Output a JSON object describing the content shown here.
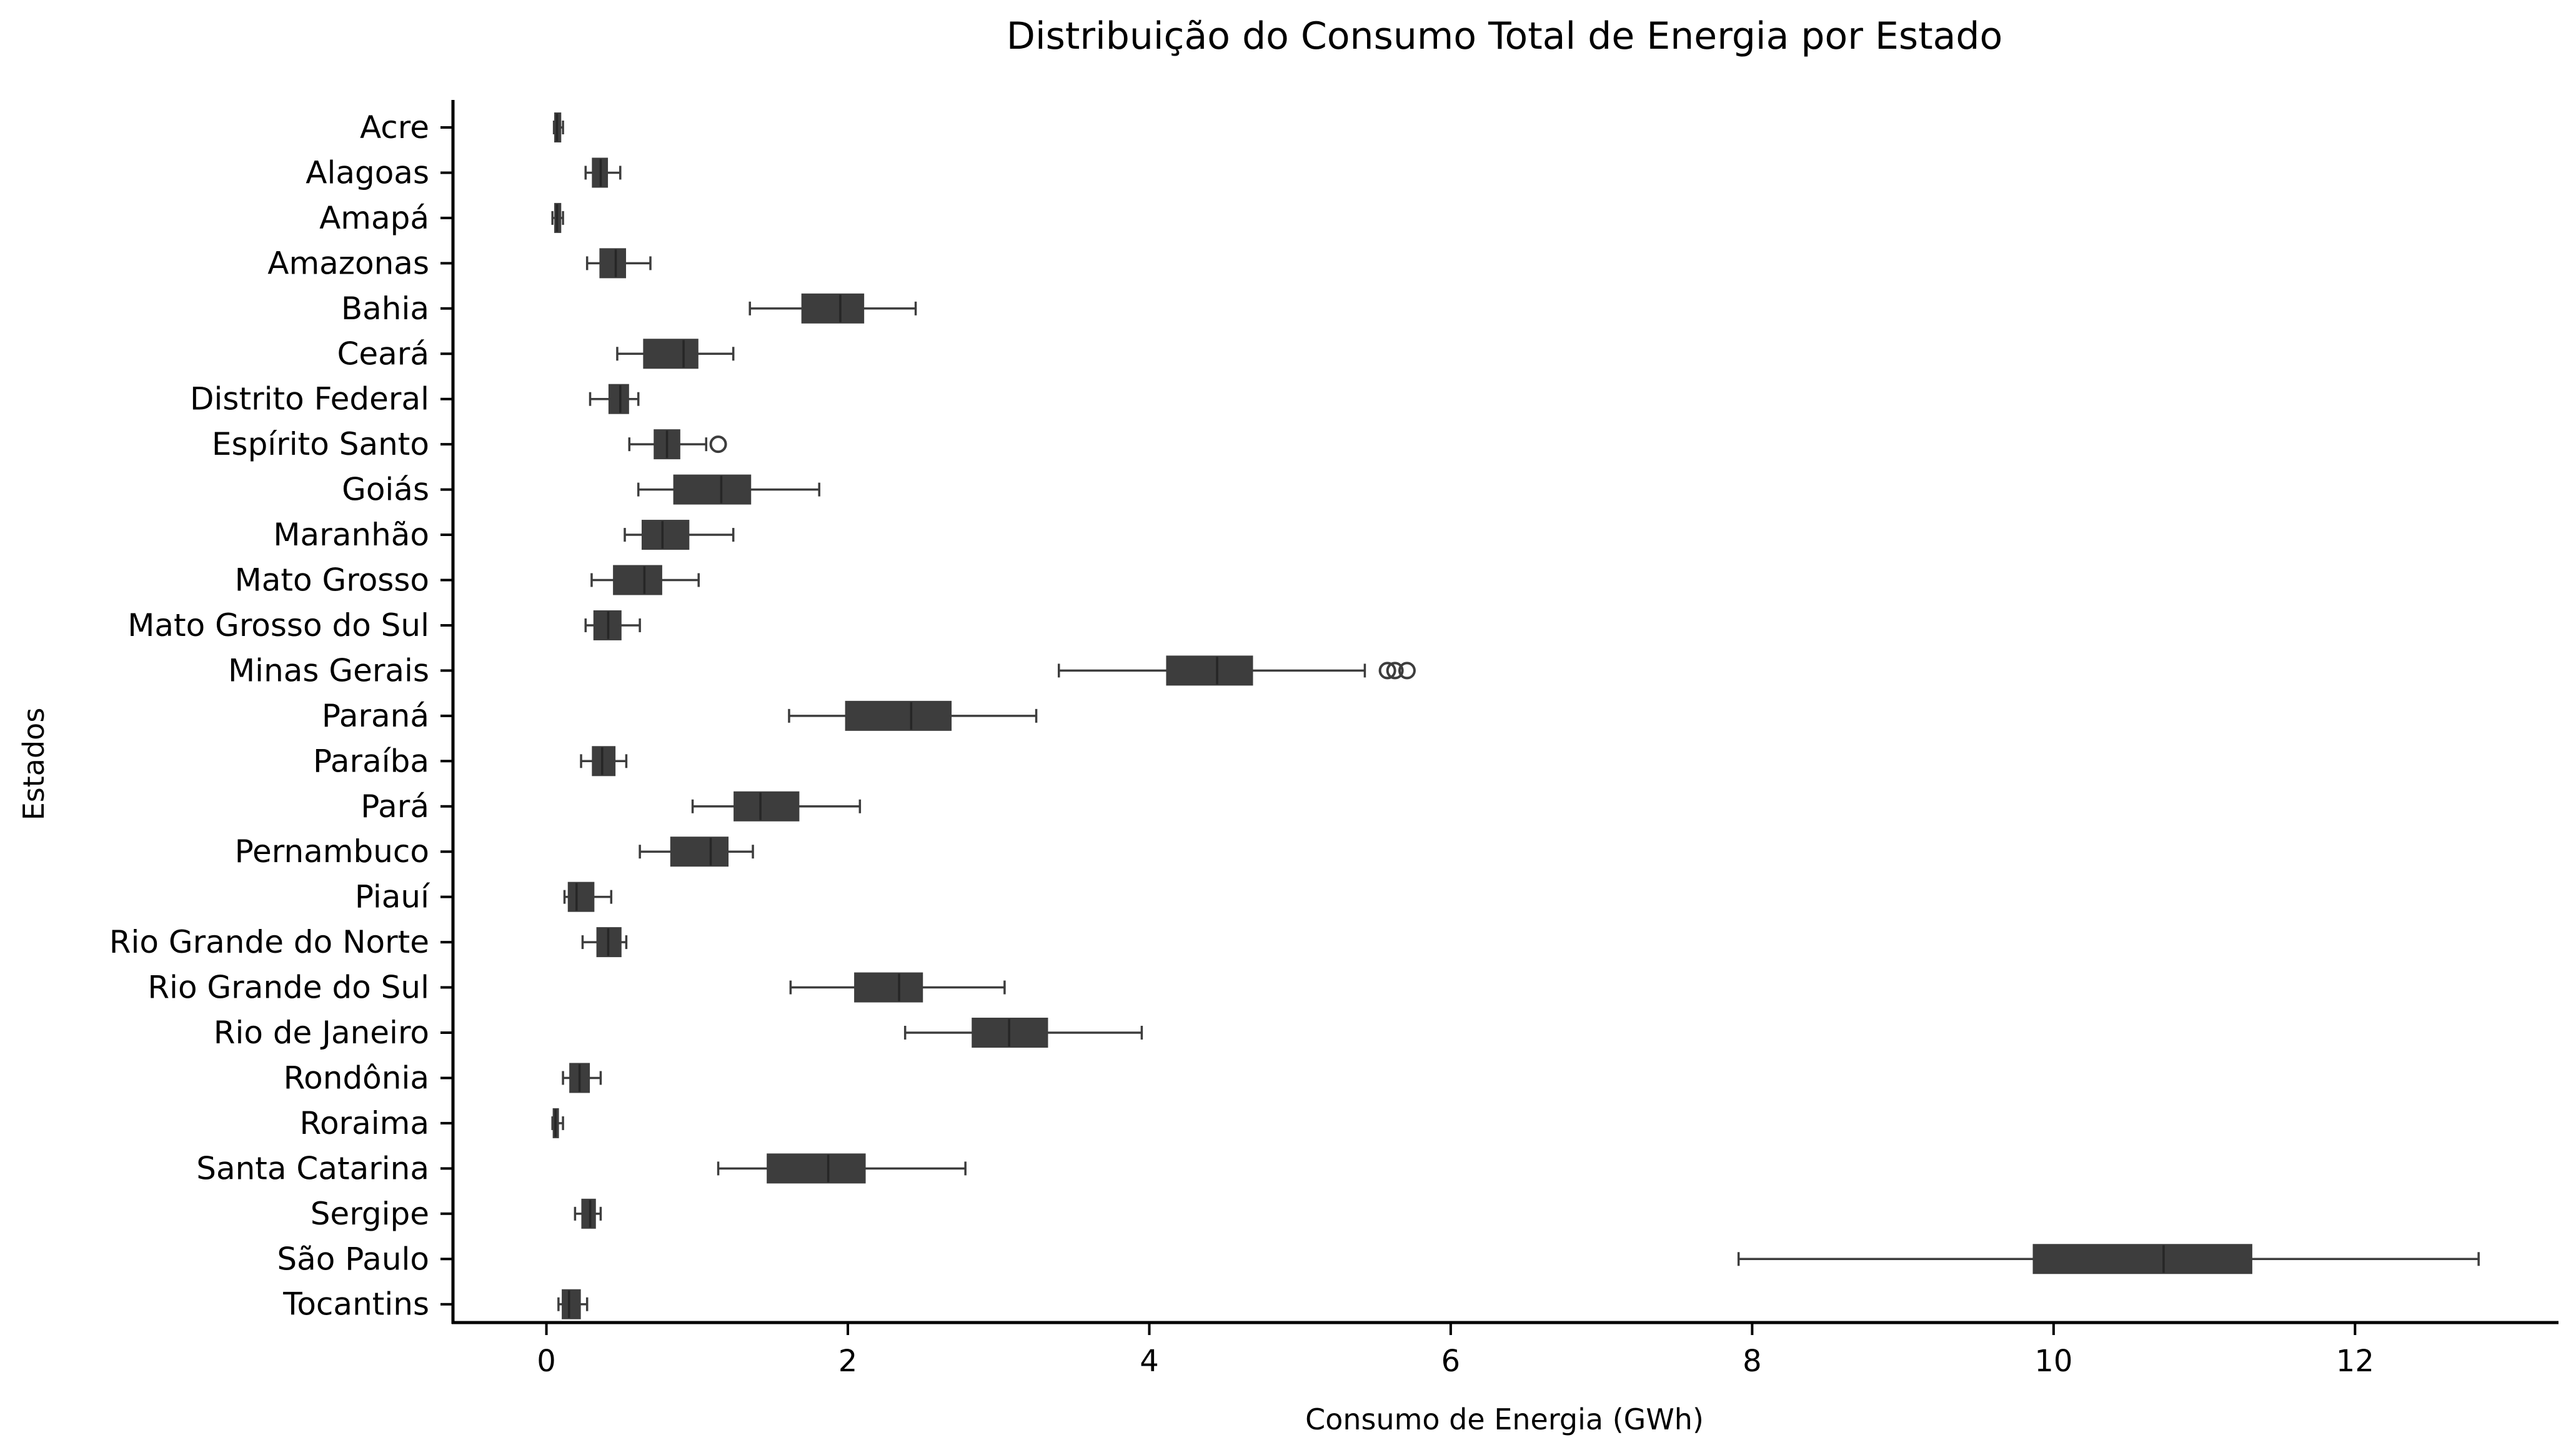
{
  "chart_data": {
    "type": "boxplot",
    "title": "Distribuição do Consumo Total de Energia por Estado",
    "xlabel": "Consumo de Energia (GWh)",
    "ylabel": "Estados",
    "xlim": [
      -0.62,
      13.35
    ],
    "xticks": [
      0,
      2,
      4,
      6,
      8,
      10,
      12
    ],
    "grid": false,
    "colors": {
      "box": "#3d3d3d",
      "median": "#262626",
      "axis": "#000000"
    },
    "categories": [
      "Acre",
      "Alagoas",
      "Amapá",
      "Amazonas",
      "Bahia",
      "Ceará",
      "Distrito Federal",
      "Espírito Santo",
      "Goiás",
      "Maranhão",
      "Mato Grosso",
      "Mato Grosso do Sul",
      "Minas Gerais",
      "Paraná",
      "Paraíba",
      "Pará",
      "Pernambuco",
      "Piauí",
      "Rio Grande do Norte",
      "Rio Grande do Sul",
      "Rio de Janeiro",
      "Rondônia",
      "Roraima",
      "Santa Catarina",
      "Sergipe",
      "São Paulo",
      "Tocantins"
    ],
    "boxes": [
      {
        "min": 0.05,
        "q1": 0.06,
        "median": 0.07,
        "q3": 0.09,
        "max": 0.11,
        "outliers": []
      },
      {
        "min": 0.26,
        "q1": 0.31,
        "median": 0.36,
        "q3": 0.4,
        "max": 0.49,
        "outliers": []
      },
      {
        "min": 0.04,
        "q1": 0.06,
        "median": 0.07,
        "q3": 0.09,
        "max": 0.11,
        "outliers": []
      },
      {
        "min": 0.27,
        "q1": 0.36,
        "median": 0.46,
        "q3": 0.52,
        "max": 0.69,
        "outliers": []
      },
      {
        "min": 1.35,
        "q1": 1.7,
        "median": 1.95,
        "q3": 2.1,
        "max": 2.45,
        "outliers": []
      },
      {
        "min": 0.47,
        "q1": 0.65,
        "median": 0.91,
        "q3": 1.0,
        "max": 1.24,
        "outliers": []
      },
      {
        "min": 0.29,
        "q1": 0.42,
        "median": 0.49,
        "q3": 0.54,
        "max": 0.61,
        "outliers": []
      },
      {
        "min": 0.55,
        "q1": 0.72,
        "median": 0.8,
        "q3": 0.88,
        "max": 1.06,
        "outliers": [
          1.14
        ]
      },
      {
        "min": 0.61,
        "q1": 0.85,
        "median": 1.16,
        "q3": 1.35,
        "max": 1.81,
        "outliers": []
      },
      {
        "min": 0.52,
        "q1": 0.64,
        "median": 0.77,
        "q3": 0.94,
        "max": 1.24,
        "outliers": []
      },
      {
        "min": 0.3,
        "q1": 0.45,
        "median": 0.65,
        "q3": 0.76,
        "max": 1.01,
        "outliers": []
      },
      {
        "min": 0.26,
        "q1": 0.32,
        "median": 0.41,
        "q3": 0.49,
        "max": 0.62,
        "outliers": []
      },
      {
        "min": 3.4,
        "q1": 4.12,
        "median": 4.45,
        "q3": 4.68,
        "max": 5.43,
        "outliers": [
          5.58,
          5.63,
          5.71
        ]
      },
      {
        "min": 1.61,
        "q1": 1.99,
        "median": 2.42,
        "q3": 2.68,
        "max": 3.25,
        "outliers": []
      },
      {
        "min": 0.23,
        "q1": 0.31,
        "median": 0.37,
        "q3": 0.45,
        "max": 0.53,
        "outliers": []
      },
      {
        "min": 0.97,
        "q1": 1.25,
        "median": 1.42,
        "q3": 1.67,
        "max": 2.08,
        "outliers": []
      },
      {
        "min": 0.62,
        "q1": 0.83,
        "median": 1.09,
        "q3": 1.2,
        "max": 1.37,
        "outliers": []
      },
      {
        "min": 0.12,
        "q1": 0.15,
        "median": 0.2,
        "q3": 0.31,
        "max": 0.43,
        "outliers": []
      },
      {
        "min": 0.24,
        "q1": 0.34,
        "median": 0.41,
        "q3": 0.49,
        "max": 0.53,
        "outliers": []
      },
      {
        "min": 1.62,
        "q1": 2.05,
        "median": 2.34,
        "q3": 2.49,
        "max": 3.04,
        "outliers": []
      },
      {
        "min": 2.38,
        "q1": 2.83,
        "median": 3.07,
        "q3": 3.32,
        "max": 3.95,
        "outliers": []
      },
      {
        "min": 0.11,
        "q1": 0.16,
        "median": 0.22,
        "q3": 0.28,
        "max": 0.36,
        "outliers": []
      },
      {
        "min": 0.04,
        "q1": 0.05,
        "median": 0.06,
        "q3": 0.07,
        "max": 0.11,
        "outliers": []
      },
      {
        "min": 1.14,
        "q1": 1.47,
        "median": 1.87,
        "q3": 2.11,
        "max": 2.78,
        "outliers": []
      },
      {
        "min": 0.19,
        "q1": 0.24,
        "median": 0.29,
        "q3": 0.32,
        "max": 0.36,
        "outliers": []
      },
      {
        "min": 7.91,
        "q1": 9.87,
        "median": 10.73,
        "q3": 11.31,
        "max": 12.82,
        "outliers": []
      },
      {
        "min": 0.08,
        "q1": 0.11,
        "median": 0.15,
        "q3": 0.22,
        "max": 0.27,
        "outliers": []
      }
    ]
  }
}
